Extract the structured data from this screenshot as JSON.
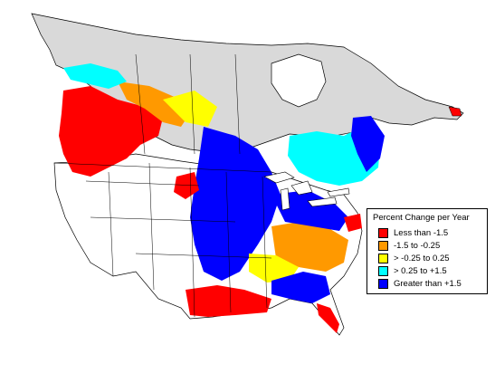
{
  "legend": {
    "title": "Percent Change per Year",
    "items": [
      {
        "label": "Less than -1.5",
        "color": "#ff0000"
      },
      {
        "label": "-1.5 to -0.25",
        "color": "#ff9900"
      },
      {
        "label": "> -0.25 to 0.25",
        "color": "#ffff00"
      },
      {
        "label": "> 0.25 to +1.5",
        "color": "#00ffff"
      },
      {
        "label": "Greater than +1.5",
        "color": "#0000ff"
      }
    ]
  },
  "colors": {
    "no_data": "#d9d9d9",
    "outside_range": "#ffffff",
    "boundary": "#000000"
  }
}
